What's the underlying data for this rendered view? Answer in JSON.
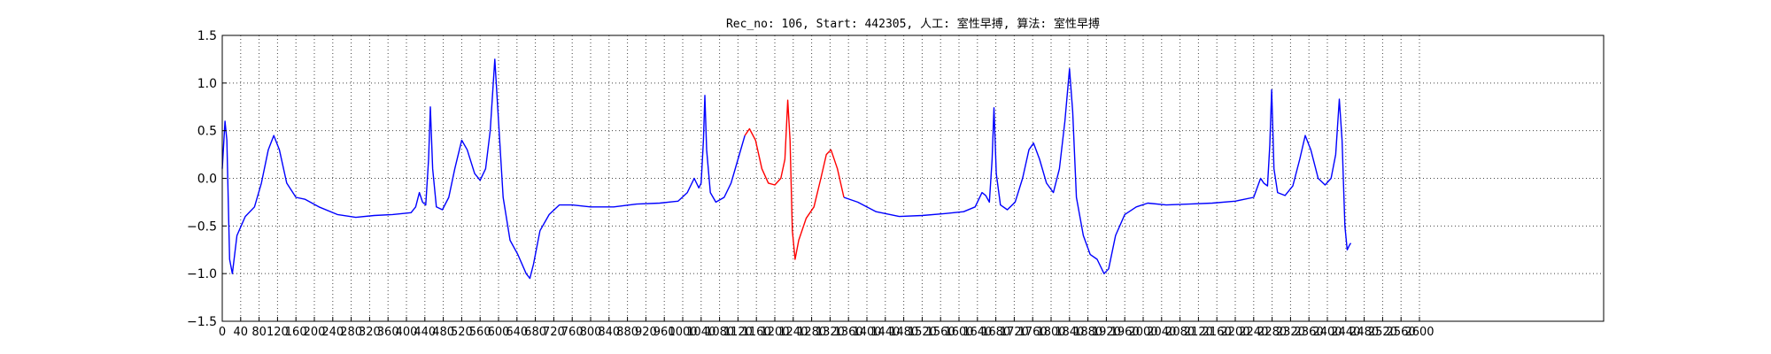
{
  "chart_data": {
    "type": "line",
    "title": "Rec_no: 106, Start: 442305, 人工: 室性早搏, 算法: 室性早搏",
    "xlabel": "",
    "ylabel": "",
    "xlim": [
      0,
      3000
    ],
    "ylim": [
      -1.5,
      1.5
    ],
    "grid": true,
    "yticks": [
      -1.5,
      -1.0,
      -0.5,
      0.0,
      0.5,
      1.0,
      1.5
    ],
    "ytick_labels": [
      "−1.5",
      "−1.0",
      "−0.5",
      "0.0",
      "0.5",
      "1.0",
      "1.5"
    ],
    "xticks": [
      0,
      40,
      80,
      120,
      160,
      200,
      240,
      280,
      320,
      360,
      400,
      440,
      480,
      520,
      560,
      600,
      640,
      680,
      720,
      760,
      800,
      840,
      880,
      920,
      960,
      1000,
      1040,
      1080,
      1120,
      1160,
      1200,
      1240,
      1280,
      1320,
      1360,
      1400,
      1440,
      1480,
      1520,
      1560,
      1600,
      1640,
      1680,
      1720,
      1760,
      1800,
      1840,
      1880,
      1920,
      1960,
      2000,
      2040,
      2080,
      2120,
      2160,
      2200,
      2240,
      2280,
      2320,
      2360,
      2400,
      2440,
      2480,
      2520,
      2560,
      2600
    ],
    "xtick_labels": [
      "0",
      "40",
      "80",
      "120",
      "160",
      "200",
      "240",
      "280",
      "320",
      "360",
      "400",
      "440",
      "480",
      "520",
      "560",
      "600",
      "640",
      "680",
      "720",
      "760",
      "800",
      "840",
      "880",
      "920",
      "960",
      "1000",
      "1040",
      "1080",
      "1120",
      "1160",
      "1200",
      "1240",
      "1280",
      "1320",
      "1360",
      "1400",
      "1440",
      "1480",
      "1520",
      "1560",
      "1600",
      "1640",
      "1680",
      "1720",
      "1760",
      "1800",
      "1840",
      "1880",
      "1920",
      "1960",
      "2000",
      "2040",
      "2080",
      "2120",
      "2160",
      "2200",
      "2240",
      "2280",
      "2320",
      "2360",
      "2400",
      "2440",
      "2480",
      "2520",
      "2560",
      "2600"
    ],
    "series": [
      {
        "color": "#0000ff",
        "points": [
          [
            0,
            0.1
          ],
          [
            6,
            0.6
          ],
          [
            10,
            0.4
          ],
          [
            16,
            -0.85
          ],
          [
            22,
            -1.0
          ],
          [
            32,
            -0.6
          ],
          [
            50,
            -0.4
          ],
          [
            70,
            -0.3
          ],
          [
            85,
            -0.05
          ],
          [
            100,
            0.3
          ],
          [
            112,
            0.45
          ],
          [
            124,
            0.3
          ],
          [
            140,
            -0.05
          ],
          [
            160,
            -0.2
          ],
          [
            180,
            -0.22
          ],
          [
            210,
            -0.3
          ],
          [
            250,
            -0.38
          ],
          [
            290,
            -0.41
          ],
          [
            330,
            -0.39
          ],
          [
            370,
            -0.38
          ],
          [
            410,
            -0.36
          ],
          [
            420,
            -0.3
          ],
          [
            428,
            -0.15
          ],
          [
            435,
            -0.25
          ],
          [
            442,
            -0.28
          ],
          [
            448,
            0.2
          ],
          [
            452,
            0.75
          ],
          [
            457,
            0.1
          ],
          [
            465,
            -0.3
          ],
          [
            478,
            -0.33
          ],
          [
            492,
            -0.2
          ],
          [
            505,
            0.1
          ],
          [
            520,
            0.4
          ],
          [
            532,
            0.3
          ],
          [
            548,
            0.05
          ],
          [
            560,
            -0.02
          ],
          [
            572,
            0.1
          ],
          [
            582,
            0.5
          ],
          [
            592,
            1.25
          ],
          [
            600,
            0.6
          ],
          [
            610,
            -0.2
          ],
          [
            625,
            -0.65
          ],
          [
            642,
            -0.8
          ],
          [
            660,
            -1.0
          ],
          [
            668,
            -1.05
          ],
          [
            676,
            -0.9
          ],
          [
            690,
            -0.55
          ],
          [
            710,
            -0.38
          ],
          [
            732,
            -0.28
          ],
          [
            760,
            -0.28
          ],
          [
            800,
            -0.3
          ],
          [
            850,
            -0.3
          ],
          [
            900,
            -0.27
          ],
          [
            950,
            -0.26
          ],
          [
            990,
            -0.24
          ],
          [
            1010,
            -0.15
          ],
          [
            1025,
            0.0
          ],
          [
            1035,
            -0.1
          ],
          [
            1040,
            -0.05
          ],
          [
            1045,
            0.4
          ],
          [
            1048,
            0.87
          ],
          [
            1052,
            0.3
          ],
          [
            1060,
            -0.15
          ],
          [
            1072,
            -0.25
          ],
          [
            1090,
            -0.2
          ],
          [
            1105,
            -0.05
          ],
          [
            1120,
            0.2
          ],
          [
            1135,
            0.45
          ]
        ]
      },
      {
        "color": "#ff0000",
        "points": [
          [
            1135,
            0.45
          ],
          [
            1145,
            0.52
          ],
          [
            1158,
            0.4
          ],
          [
            1172,
            0.1
          ],
          [
            1186,
            -0.05
          ],
          [
            1200,
            -0.07
          ],
          [
            1213,
            0.0
          ],
          [
            1222,
            0.2
          ],
          [
            1228,
            0.82
          ],
          [
            1233,
            0.4
          ],
          [
            1238,
            -0.55
          ],
          [
            1244,
            -0.85
          ],
          [
            1252,
            -0.65
          ],
          [
            1268,
            -0.42
          ],
          [
            1285,
            -0.3
          ],
          [
            1300,
            0.0
          ],
          [
            1312,
            0.25
          ],
          [
            1322,
            0.3
          ],
          [
            1336,
            0.1
          ],
          [
            1350,
            -0.2
          ]
        ]
      },
      {
        "color": "#0000ff",
        "points": [
          [
            1350,
            -0.2
          ],
          [
            1380,
            -0.25
          ],
          [
            1420,
            -0.35
          ],
          [
            1470,
            -0.4
          ],
          [
            1520,
            -0.39
          ],
          [
            1570,
            -0.37
          ],
          [
            1610,
            -0.35
          ],
          [
            1635,
            -0.3
          ],
          [
            1650,
            -0.15
          ],
          [
            1658,
            -0.18
          ],
          [
            1666,
            -0.25
          ],
          [
            1672,
            0.2
          ],
          [
            1676,
            0.74
          ],
          [
            1681,
            0.05
          ],
          [
            1690,
            -0.28
          ],
          [
            1705,
            -0.33
          ],
          [
            1722,
            -0.25
          ],
          [
            1738,
            0.0
          ],
          [
            1752,
            0.3
          ],
          [
            1762,
            0.37
          ],
          [
            1775,
            0.2
          ],
          [
            1790,
            -0.05
          ],
          [
            1805,
            -0.15
          ],
          [
            1818,
            0.1
          ],
          [
            1830,
            0.6
          ],
          [
            1840,
            1.15
          ],
          [
            1847,
            0.7
          ],
          [
            1855,
            -0.2
          ],
          [
            1870,
            -0.6
          ],
          [
            1885,
            -0.8
          ],
          [
            1900,
            -0.85
          ],
          [
            1915,
            -1.0
          ],
          [
            1925,
            -0.95
          ],
          [
            1940,
            -0.6
          ],
          [
            1960,
            -0.38
          ],
          [
            1985,
            -0.3
          ],
          [
            2010,
            -0.26
          ],
          [
            2050,
            -0.28
          ],
          [
            2100,
            -0.27
          ],
          [
            2150,
            -0.26
          ],
          [
            2200,
            -0.24
          ],
          [
            2240,
            -0.2
          ],
          [
            2255,
            0.0
          ],
          [
            2262,
            -0.05
          ],
          [
            2270,
            -0.08
          ],
          [
            2275,
            0.35
          ],
          [
            2279,
            0.93
          ],
          [
            2284,
            0.1
          ],
          [
            2292,
            -0.15
          ],
          [
            2308,
            -0.18
          ],
          [
            2325,
            -0.08
          ],
          [
            2340,
            0.2
          ],
          [
            2352,
            0.45
          ],
          [
            2364,
            0.3
          ],
          [
            2380,
            0.0
          ],
          [
            2395,
            -0.07
          ],
          [
            2408,
            0.0
          ],
          [
            2418,
            0.25
          ],
          [
            2426,
            0.83
          ],
          [
            2432,
            0.4
          ],
          [
            2438,
            -0.5
          ],
          [
            2443,
            -0.75
          ],
          [
            2448,
            -0.7
          ],
          [
            2451,
            -0.68
          ]
        ]
      }
    ]
  }
}
